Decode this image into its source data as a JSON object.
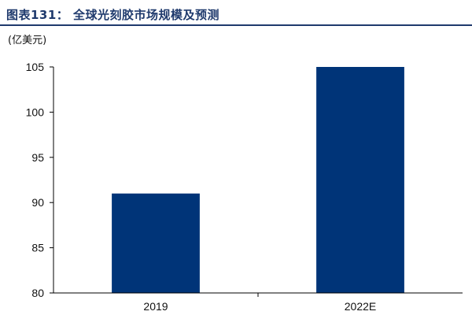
{
  "header": {
    "figure_title": "图表131：   全球光刻胶市场规模及预测"
  },
  "chart_data": {
    "type": "bar",
    "title": "",
    "xlabel": "",
    "ylabel": "(亿美元)",
    "categories": [
      "2019",
      "2022E"
    ],
    "values": [
      91,
      105
    ],
    "ylim": [
      80,
      105
    ],
    "yticks": [
      80,
      85,
      90,
      95,
      100,
      105
    ],
    "grid": false,
    "legend": "none",
    "bar_color": "#003478",
    "axis_color": "#000000"
  }
}
